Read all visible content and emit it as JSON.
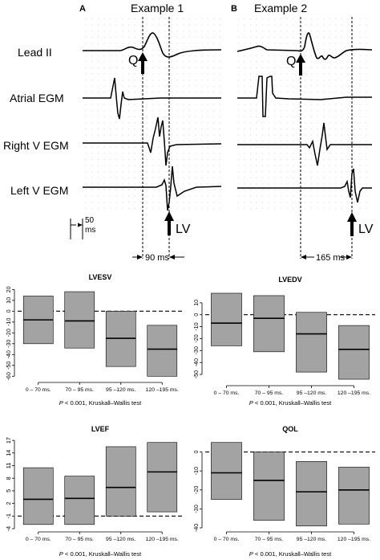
{
  "figure": {
    "panel_a_letter": "A",
    "panel_a_title": "Example 1",
    "panel_b_letter": "B",
    "panel_b_title": "Example 2",
    "trace_labels": [
      "Lead II",
      "Atrial EGM",
      "Right V EGM",
      "Left V EGM"
    ],
    "q_label": "Q",
    "lv_label": "LV",
    "scale_value": "50",
    "scale_unit": "ms",
    "interval_a": "90 ms",
    "interval_b": "165 ms"
  },
  "chart_data": [
    {
      "type": "bar",
      "title": "LVESV",
      "categories": [
        "0 – 70 ms.",
        "70 – 95 ms.",
        "95 –120 ms.",
        "120 –195 ms."
      ],
      "series": [
        {
          "q1": [
            -30,
            -34,
            -51,
            -60
          ],
          "median": [
            -8,
            -9,
            -25,
            -35
          ],
          "q3": [
            14,
            18,
            0,
            -13
          ]
        }
      ],
      "ylim": [
        -62,
        21
      ],
      "yticks": [
        20,
        10,
        0,
        -10,
        -20,
        -30,
        -40,
        -50,
        -60
      ],
      "reference_line": 0,
      "footnote": "P < 0.001, Kruskall–Wallis test"
    },
    {
      "type": "bar",
      "title": "LVEDV",
      "categories": [
        "0 – 70 ms.",
        "70 – 95 ms.",
        "95 –120 ms.",
        "120 –195 ms."
      ],
      "series": [
        {
          "q1": [
            -26,
            -31,
            -48,
            -54
          ],
          "median": [
            -7,
            -3,
            -16,
            -29
          ],
          "q3": [
            18,
            16,
            2,
            -9
          ]
        }
      ],
      "ylim": [
        -56,
        20
      ],
      "yticks": [
        10,
        0,
        -10,
        -20,
        -30,
        -40,
        -50
      ],
      "reference_line": 0,
      "footnote": "P < 0.001, Kruskall–Wallis test"
    },
    {
      "type": "bar",
      "title": "LVEF",
      "categories": [
        "0 – 70 ms.",
        "70 – 95 ms.",
        "95 –120 ms.",
        "120 –195 ms."
      ],
      "series": [
        {
          "q1": [
            -3,
            -3,
            -1,
            0
          ],
          "median": [
            3,
            3.2,
            5.8,
            9.5
          ],
          "q3": [
            10.5,
            8.5,
            15.5,
            16.5
          ]
        }
      ],
      "ylim": [
        -3.8,
        17.4
      ],
      "yticks": [
        17,
        14,
        11,
        8,
        5,
        2,
        -1,
        -4
      ],
      "reference_line": -1,
      "footnote": "P < 0.001, Kruskall–Wallis test"
    },
    {
      "type": "bar",
      "title": "QOL",
      "categories": [
        "0 – 70 ms.",
        "70 – 95 ms.",
        "95 –120 ms.",
        "120 –195 ms."
      ],
      "series": [
        {
          "q1": [
            -25,
            -36,
            -39,
            -38
          ],
          "median": [
            -11,
            -15,
            -21,
            -20
          ],
          "q3": [
            5,
            0,
            -5,
            -8
          ]
        }
      ],
      "ylim": [
        -40,
        7
      ],
      "yticks": [
        0,
        -10,
        -20,
        -30,
        -40
      ],
      "reference_line": 0,
      "footnote": "P < 0.001, Kruskall–Wallis test"
    }
  ],
  "colors": {
    "box_fill": "#a3a3a3",
    "grid_dot": "#b8b8b8",
    "ink": "#000000"
  }
}
